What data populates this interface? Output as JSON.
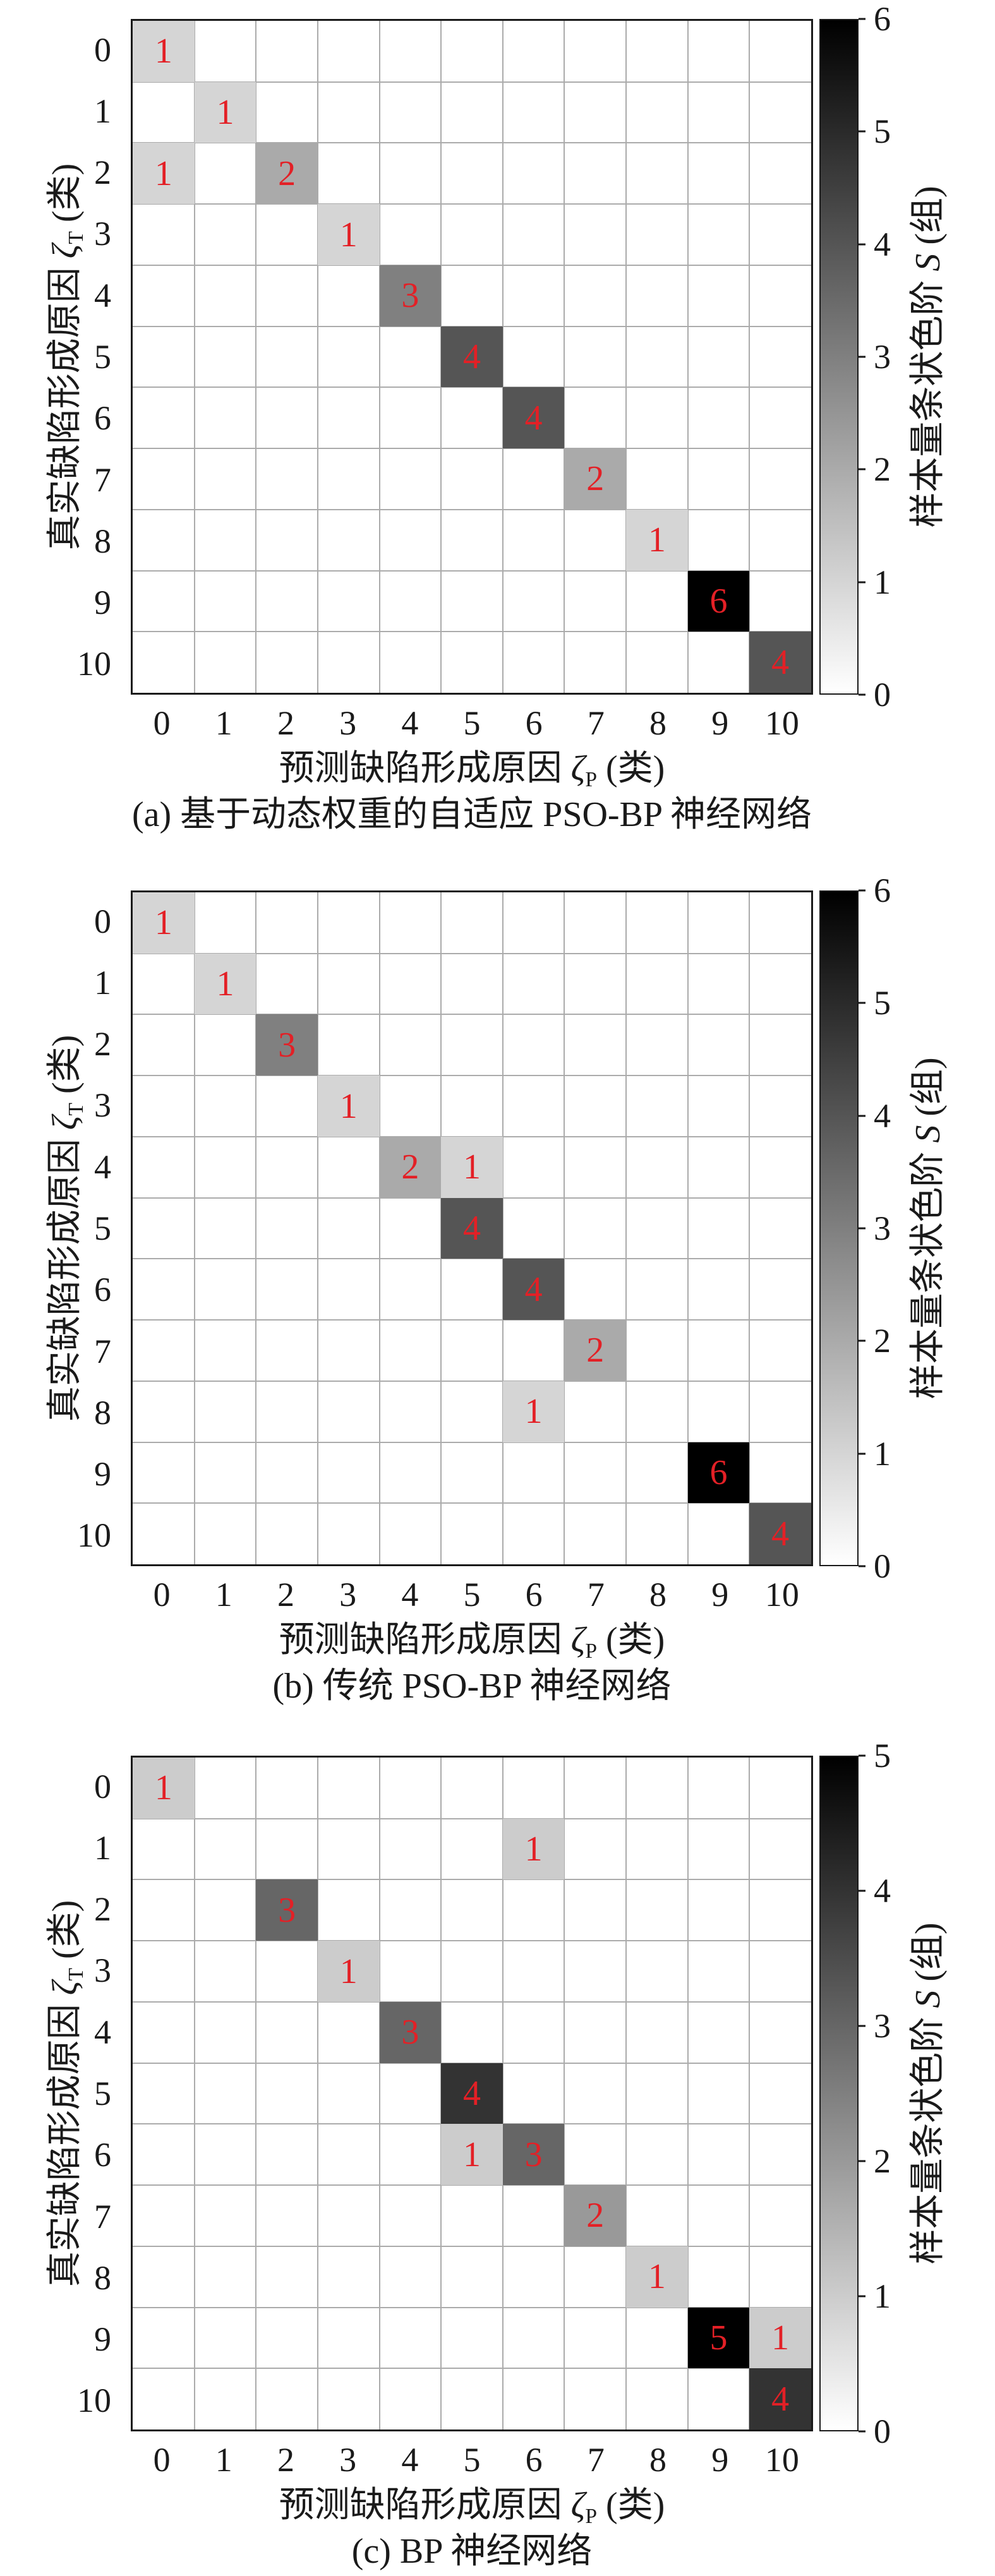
{
  "figure": {
    "background": "#ffffff",
    "axis_labels": {
      "x": {
        "before": "预测缺陷形成原因 ",
        "symbol": "ζ",
        "sub": "P",
        "after": " (类)"
      },
      "y": {
        "before": "真实缺陷形成原因 ",
        "symbol": "ζ",
        "sub": "T",
        "after": " (类)"
      },
      "colorbar": {
        "before": "样本量条状色阶 ",
        "symbol": "S",
        "sub": "",
        "after": " (组)"
      }
    },
    "colors": {
      "annotation_red": "#e32026",
      "grid_line": "#ababab",
      "axis_border": "#1a1a1a",
      "tick_text": "#1a1a1a",
      "cmap_low": "#ffffff",
      "cmap_high": "#000000"
    }
  },
  "chart_data": [
    {
      "type": "heatmap",
      "panel": "a",
      "caption": "(a) 基于动态权重的自适应 PSO-BP 神经网络",
      "title": "",
      "xlabel": "预测缺陷形成原因 ζP (类)",
      "ylabel": "真实缺陷形成原因 ζT (类)",
      "colorbar_label": "样本量条状色阶 S (组)",
      "categories_x": [
        "0",
        "1",
        "2",
        "3",
        "4",
        "5",
        "6",
        "7",
        "8",
        "9",
        "10"
      ],
      "categories_y": [
        "0",
        "1",
        "2",
        "3",
        "4",
        "5",
        "6",
        "7",
        "8",
        "9",
        "10"
      ],
      "value_min": 0,
      "value_max": 6,
      "colorbar_ticks": [
        "0",
        "1",
        "2",
        "3",
        "4",
        "5",
        "6"
      ],
      "cells": [
        {
          "row": 0,
          "col": 0,
          "value": 1
        },
        {
          "row": 1,
          "col": 1,
          "value": 1
        },
        {
          "row": 2,
          "col": 0,
          "value": 1
        },
        {
          "row": 2,
          "col": 2,
          "value": 2
        },
        {
          "row": 3,
          "col": 3,
          "value": 1
        },
        {
          "row": 4,
          "col": 4,
          "value": 3
        },
        {
          "row": 5,
          "col": 5,
          "value": 4
        },
        {
          "row": 6,
          "col": 6,
          "value": 4
        },
        {
          "row": 7,
          "col": 7,
          "value": 2
        },
        {
          "row": 8,
          "col": 8,
          "value": 1
        },
        {
          "row": 9,
          "col": 9,
          "value": 6
        },
        {
          "row": 10,
          "col": 10,
          "value": 4
        }
      ]
    },
    {
      "type": "heatmap",
      "panel": "b",
      "caption": "(b) 传统 PSO-BP 神经网络",
      "title": "",
      "xlabel": "预测缺陷形成原因 ζP (类)",
      "ylabel": "真实缺陷形成原因 ζT (类)",
      "colorbar_label": "样本量条状色阶 S (组)",
      "categories_x": [
        "0",
        "1",
        "2",
        "3",
        "4",
        "5",
        "6",
        "7",
        "8",
        "9",
        "10"
      ],
      "categories_y": [
        "0",
        "1",
        "2",
        "3",
        "4",
        "5",
        "6",
        "7",
        "8",
        "9",
        "10"
      ],
      "value_min": 0,
      "value_max": 6,
      "colorbar_ticks": [
        "0",
        "1",
        "2",
        "3",
        "4",
        "5",
        "6"
      ],
      "cells": [
        {
          "row": 0,
          "col": 0,
          "value": 1
        },
        {
          "row": 1,
          "col": 1,
          "value": 1
        },
        {
          "row": 2,
          "col": 2,
          "value": 3
        },
        {
          "row": 3,
          "col": 3,
          "value": 1
        },
        {
          "row": 4,
          "col": 4,
          "value": 2
        },
        {
          "row": 4,
          "col": 5,
          "value": 1
        },
        {
          "row": 5,
          "col": 5,
          "value": 4
        },
        {
          "row": 6,
          "col": 6,
          "value": 4
        },
        {
          "row": 7,
          "col": 7,
          "value": 2
        },
        {
          "row": 8,
          "col": 6,
          "value": 1
        },
        {
          "row": 9,
          "col": 9,
          "value": 6
        },
        {
          "row": 10,
          "col": 10,
          "value": 4
        }
      ]
    },
    {
      "type": "heatmap",
      "panel": "c",
      "caption": "(c) BP 神经网络",
      "title": "",
      "xlabel": "预测缺陷形成原因 ζP (类)",
      "ylabel": "真实缺陷形成原因 ζT (类)",
      "colorbar_label": "样本量条状色阶 S (组)",
      "categories_x": [
        "0",
        "1",
        "2",
        "3",
        "4",
        "5",
        "6",
        "7",
        "8",
        "9",
        "10"
      ],
      "categories_y": [
        "0",
        "1",
        "2",
        "3",
        "4",
        "5",
        "6",
        "7",
        "8",
        "9",
        "10"
      ],
      "value_min": 0,
      "value_max": 5,
      "colorbar_ticks": [
        "0",
        "1",
        "2",
        "3",
        "4",
        "5"
      ],
      "cells": [
        {
          "row": 0,
          "col": 0,
          "value": 1
        },
        {
          "row": 1,
          "col": 6,
          "value": 1
        },
        {
          "row": 2,
          "col": 2,
          "value": 3
        },
        {
          "row": 3,
          "col": 3,
          "value": 1
        },
        {
          "row": 4,
          "col": 4,
          "value": 3
        },
        {
          "row": 5,
          "col": 5,
          "value": 4
        },
        {
          "row": 6,
          "col": 5,
          "value": 1
        },
        {
          "row": 6,
          "col": 6,
          "value": 3
        },
        {
          "row": 7,
          "col": 7,
          "value": 2
        },
        {
          "row": 8,
          "col": 8,
          "value": 1
        },
        {
          "row": 9,
          "col": 9,
          "value": 5
        },
        {
          "row": 9,
          "col": 10,
          "value": 1
        },
        {
          "row": 10,
          "col": 10,
          "value": 4
        }
      ]
    }
  ]
}
